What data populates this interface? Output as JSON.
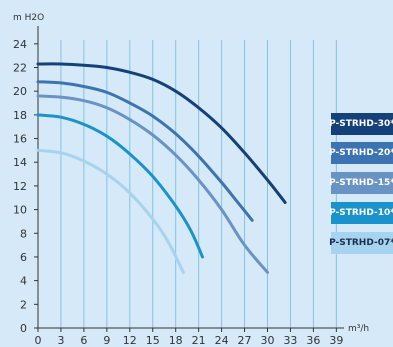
{
  "chart_data": {
    "type": "line",
    "ylabel": "m H2O",
    "xlabel": "m³/h",
    "x_ticks": [
      0,
      3,
      6,
      9,
      12,
      15,
      18,
      21,
      24,
      27,
      30,
      33,
      36,
      39
    ],
    "y_ticks": [
      0,
      2,
      4,
      6,
      8,
      10,
      12,
      14,
      16,
      18,
      20,
      22,
      24
    ],
    "xlim": [
      0,
      40
    ],
    "ylim": [
      0,
      25
    ],
    "grid": "vertical",
    "legend_position": "right",
    "series": [
      {
        "name": "P-STRHD-30*",
        "color": "#14417a",
        "text_color": "#ffffff",
        "points": [
          [
            0,
            22.3
          ],
          [
            3,
            22.3
          ],
          [
            6,
            22.2
          ],
          [
            9,
            22.0
          ],
          [
            12,
            21.6
          ],
          [
            15,
            21.0
          ],
          [
            18,
            20.0
          ],
          [
            21,
            18.6
          ],
          [
            24,
            16.9
          ],
          [
            27,
            14.8
          ],
          [
            30,
            12.5
          ],
          [
            32.3,
            10.6
          ]
        ]
      },
      {
        "name": "P-STRHD-20*",
        "color": "#3c73b2",
        "text_color": "#ffffff",
        "points": [
          [
            0,
            20.8
          ],
          [
            3,
            20.7
          ],
          [
            6,
            20.4
          ],
          [
            9,
            19.9
          ],
          [
            12,
            19.0
          ],
          [
            15,
            17.9
          ],
          [
            18,
            16.4
          ],
          [
            21,
            14.5
          ],
          [
            24,
            12.3
          ],
          [
            26,
            10.7
          ],
          [
            28,
            9.1
          ]
        ]
      },
      {
        "name": "P-STRHD-15*",
        "color": "#6a93c5",
        "text_color": "#ffffff",
        "points": [
          [
            0,
            19.6
          ],
          [
            3,
            19.5
          ],
          [
            6,
            19.2
          ],
          [
            9,
            18.6
          ],
          [
            12,
            17.6
          ],
          [
            15,
            16.3
          ],
          [
            18,
            14.6
          ],
          [
            21,
            12.5
          ],
          [
            24,
            10.0
          ],
          [
            27,
            7.0
          ],
          [
            30,
            4.7
          ]
        ]
      },
      {
        "name": "P-STRHD-10*",
        "color": "#1a93cc",
        "text_color": "#ffffff",
        "points": [
          [
            0,
            18.0
          ],
          [
            3,
            17.8
          ],
          [
            6,
            17.2
          ],
          [
            9,
            16.2
          ],
          [
            12,
            14.7
          ],
          [
            15,
            12.8
          ],
          [
            18,
            10.3
          ],
          [
            20,
            8.2
          ],
          [
            21.5,
            6.0
          ]
        ]
      },
      {
        "name": "P-STRHD-07*",
        "color": "#a6d3ef",
        "text_color": "#1c2f4a",
        "points": [
          [
            0,
            15.0
          ],
          [
            3,
            14.8
          ],
          [
            6,
            14.1
          ],
          [
            9,
            13.0
          ],
          [
            12,
            11.4
          ],
          [
            15,
            9.2
          ],
          [
            17,
            7.3
          ],
          [
            19,
            4.7
          ]
        ]
      }
    ]
  }
}
